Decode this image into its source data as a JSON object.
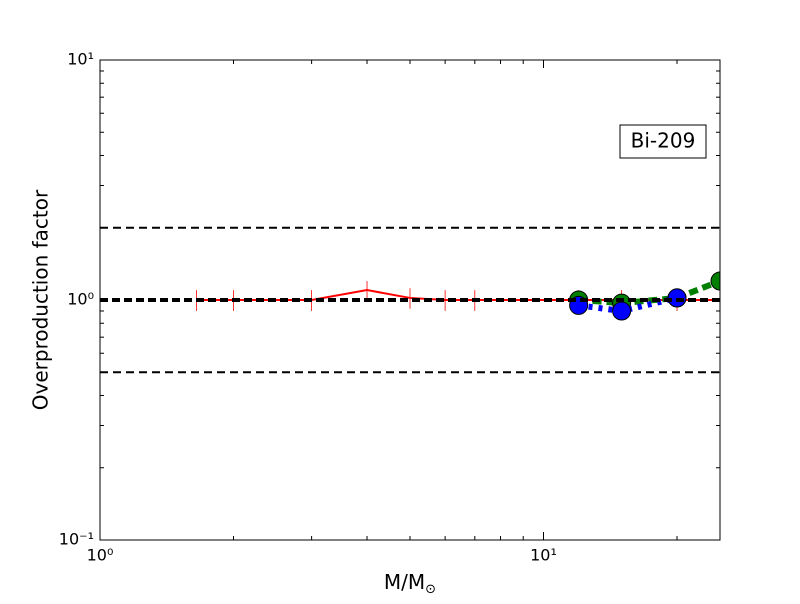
{
  "chart_data": {
    "type": "line",
    "ylabel": "Overproduction factor",
    "xlabel": "M/M",
    "xlabel_sub": "⊙",
    "annotation": "Bi-209",
    "xlog": true,
    "ylog": true,
    "xlim": [
      1,
      25
    ],
    "ylim": [
      0.1,
      10
    ],
    "xticks": [
      {
        "value": 1,
        "label": "10⁰"
      },
      {
        "value": 10,
        "label": "10¹"
      }
    ],
    "yticks": [
      {
        "value": 0.1,
        "label": "10⁻¹"
      },
      {
        "value": 1,
        "label": "10⁰"
      },
      {
        "value": 10,
        "label": "10¹"
      }
    ],
    "hlines": [
      2,
      0.5
    ],
    "unity_line": 1,
    "series": [
      {
        "color": "#ff0000",
        "style": "solid",
        "markers": false,
        "x": [
          1.65,
          2,
          3,
          4,
          5,
          6,
          7,
          12,
          15,
          20,
          25
        ],
        "values": [
          1,
          1,
          1,
          1.1,
          1.02,
          1,
          1,
          1,
          1,
          1,
          1
        ],
        "errors": [
          0.1,
          0.1,
          0.1,
          0.1,
          0.1,
          0.1,
          0.1,
          0.1,
          0.1,
          0.1,
          0.1
        ]
      },
      {
        "color": "#007f00",
        "style": "dashed",
        "markers": true,
        "x": [
          12,
          15,
          20,
          25
        ],
        "values": [
          1.0,
          0.97,
          1.02,
          1.2
        ]
      },
      {
        "color": "#0000ff",
        "style": "dotted",
        "markers": true,
        "x": [
          12,
          15,
          20
        ],
        "values": [
          0.95,
          0.9,
          1.02
        ]
      }
    ]
  }
}
